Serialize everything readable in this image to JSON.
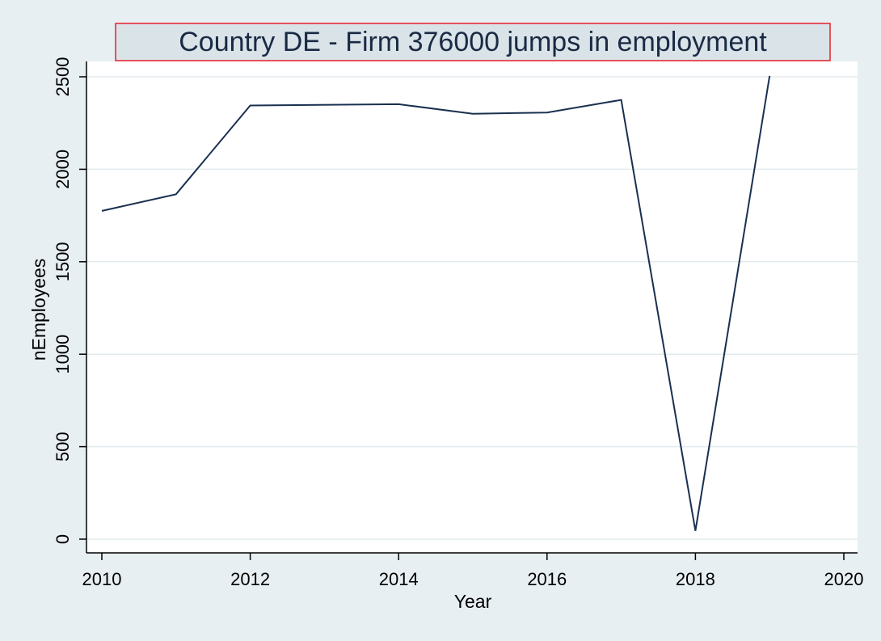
{
  "chart_data": {
    "type": "line",
    "title": "Country DE - Firm 376000  jumps in employment",
    "xlabel": "Year",
    "ylabel": "nEmployees",
    "xlim": [
      2010,
      2020
    ],
    "ylim": [
      0,
      2500
    ],
    "x_ticks": [
      "2010",
      "2012",
      "2014",
      "2016",
      "2018",
      "2020"
    ],
    "y_ticks": [
      "0",
      "500",
      "1000",
      "1500",
      "2000",
      "2500"
    ],
    "grid": true,
    "series": [
      {
        "x": [
          2010,
          2011,
          2012,
          2014,
          2015,
          2016,
          2017,
          2018,
          2019
        ],
        "y": [
          1775,
          1865,
          2345,
          2352,
          2300,
          2307,
          2375,
          45,
          2505
        ]
      }
    ],
    "colors": {
      "line": "#1a3050",
      "background": "#e8eff2",
      "plot_background": "#ffffff",
      "grid": "#e3ebee",
      "title_box_fill": "#d9e3e8",
      "title_box_border": "#e8202a"
    }
  }
}
